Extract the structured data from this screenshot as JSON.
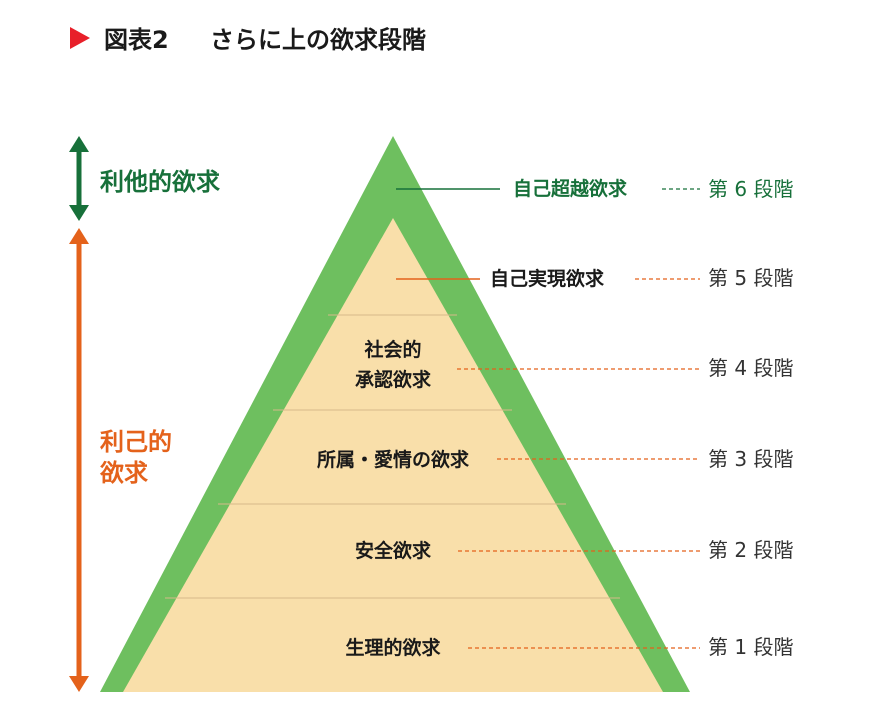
{
  "title": {
    "figure_number": "図表2",
    "text": "さらに上の欲求段階"
  },
  "side_labels": {
    "altruistic": "利他的欲求",
    "selfish_line1": "利己的",
    "selfish_line2": "欲求"
  },
  "levels": [
    {
      "name": "自己超越欲求",
      "stage": "第 6 段階"
    },
    {
      "name": "自己実現欲求",
      "stage": "第 5 段階"
    },
    {
      "name_line1": "社会的",
      "name_line2": "承認欲求",
      "stage": "第 4 段階"
    },
    {
      "name": "所属・愛情の欲求",
      "stage": "第 3 段階"
    },
    {
      "name": "安全欲求",
      "stage": "第 2 段階"
    },
    {
      "name": "生理的欲求",
      "stage": "第 1 段階"
    }
  ],
  "colors": {
    "title_marker": "#e8202a",
    "green": "#6ebf5f",
    "dark_green": "#17703a",
    "orange": "#e4621b",
    "beige": "#f9dfaa",
    "divider": "#d7b98a"
  },
  "icons": {
    "title_marker": "triangle-right-icon",
    "altruistic_arrow": "double-arrow-vertical-icon",
    "selfish_arrow": "double-arrow-vertical-icon"
  }
}
